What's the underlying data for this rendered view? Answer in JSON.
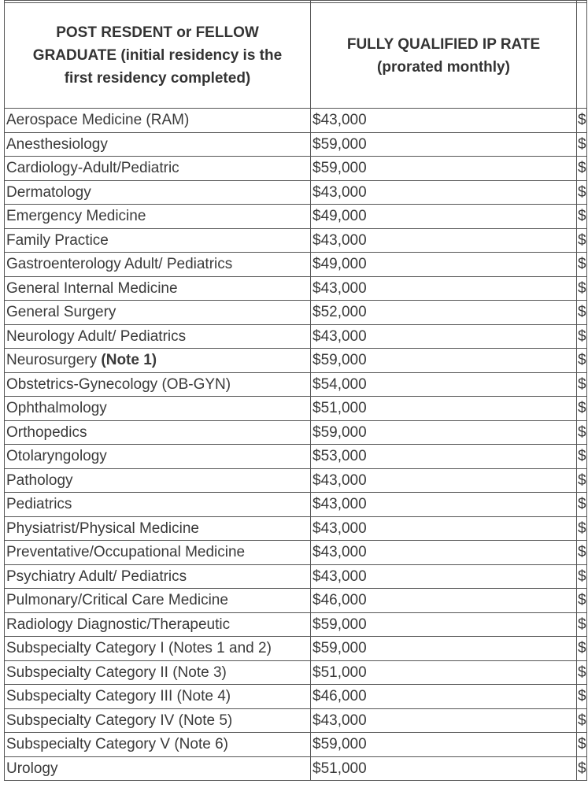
{
  "table": {
    "headers": {
      "col1": "POST RESDENT or FELLOW GRADUATE (initial residency is the first residency completed)",
      "col2_line1": "FULLY QUALIFIED IP RATE",
      "col2_line2": "(prorated monthly)"
    },
    "rows": [
      {
        "specialty": "Aerospace Medicine (RAM)",
        "note": "",
        "rate": "$43,000"
      },
      {
        "specialty": "Anesthesiology",
        "note": "",
        "rate": "$59,000"
      },
      {
        "specialty": "Cardiology-Adult/Pediatric",
        "note": "",
        "rate": "$59,000"
      },
      {
        "specialty": "Dermatology",
        "note": "",
        "rate": "$43,000"
      },
      {
        "specialty": "Emergency Medicine",
        "note": "",
        "rate": "$49,000"
      },
      {
        "specialty": "Family Practice",
        "note": "",
        "rate": "$43,000"
      },
      {
        "specialty": "Gastroenterology Adult/ Pediatrics",
        "note": "",
        "rate": "$49,000"
      },
      {
        "specialty": "General Internal Medicine",
        "note": "",
        "rate": "$43,000"
      },
      {
        "specialty": "General Surgery",
        "note": "",
        "rate": "$52,000"
      },
      {
        "specialty": "Neurology Adult/ Pediatrics",
        "note": "",
        "rate": "$43,000"
      },
      {
        "specialty": "Neurosurgery ",
        "note": "(Note 1)",
        "rate": "$59,000"
      },
      {
        "specialty": "Obstetrics-Gynecology (OB-GYN)",
        "note": "",
        "rate": "$54,000"
      },
      {
        "specialty": "Ophthalmology",
        "note": "",
        "rate": "$51,000"
      },
      {
        "specialty": "Orthopedics",
        "note": "",
        "rate": "$59,000"
      },
      {
        "specialty": "Otolaryngology",
        "note": "",
        "rate": "$53,000"
      },
      {
        "specialty": "Pathology",
        "note": "",
        "rate": "$43,000"
      },
      {
        "specialty": "Pediatrics",
        "note": "",
        "rate": "$43,000"
      },
      {
        "specialty": "Physiatrist/Physical Medicine",
        "note": "",
        "rate": "$43,000"
      },
      {
        "specialty": "Preventative/Occupational Medicine",
        "note": "",
        "rate": "$43,000"
      },
      {
        "specialty": "Psychiatry Adult/ Pediatrics",
        "note": "",
        "rate": "$43,000"
      },
      {
        "specialty": "Pulmonary/Critical Care Medicine",
        "note": "",
        "rate": "$46,000"
      },
      {
        "specialty": "Radiology Diagnostic/Therapeutic",
        "note": "",
        "rate": "$59,000"
      },
      {
        "specialty": "Subspecialty Category I (Notes 1 and 2)",
        "note": "",
        "rate": "$59,000"
      },
      {
        "specialty": "Subspecialty Category II (Note 3)",
        "note": "",
        "rate": "$51,000"
      },
      {
        "specialty": "Subspecialty Category III (Note 4)",
        "note": "",
        "rate": "$46,000"
      },
      {
        "specialty": "Subspecialty Category IV (Note 5)",
        "note": "",
        "rate": "$43,000"
      },
      {
        "specialty": "Subspecialty Category V (Note 6)",
        "note": "",
        "rate": "$59,000"
      },
      {
        "specialty": "Urology",
        "note": "",
        "rate": "$51,000"
      }
    ],
    "clipped_column_glyph": "$"
  }
}
